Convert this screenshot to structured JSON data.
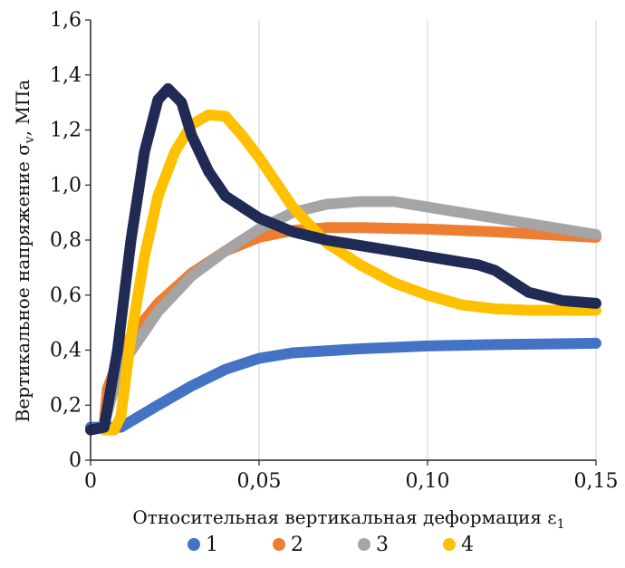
{
  "chart_data": {
    "type": "line",
    "title": "",
    "xlabel": "Относительная вертикальная деформация ε",
    "xlabel_sub": "1",
    "ylabel": "Вертикальное напряжение σ",
    "ylabel_sub": "v",
    "ylabel_suffix": ", МПа",
    "xlim": [
      0,
      0.15
    ],
    "ylim": [
      0,
      1.6
    ],
    "x_ticks": [
      0,
      0.05,
      0.1,
      0.15
    ],
    "x_tick_labels": [
      "0",
      "0,05",
      "0,10",
      "0,15"
    ],
    "y_ticks": [
      0,
      0.2,
      0.4,
      0.6,
      0.8,
      1.0,
      1.2,
      1.4,
      1.6
    ],
    "y_tick_labels": [
      "0",
      "0,2",
      "0,4",
      "0,6",
      "0,8",
      "1,0",
      "1,2",
      "1,4",
      "1,6"
    ],
    "grid": "vertical",
    "legend_position": "bottom",
    "series": [
      {
        "name": "1",
        "color": "#4472C4",
        "x": [
          0.0,
          0.009,
          0.02,
          0.03,
          0.04,
          0.05,
          0.06,
          0.08,
          0.1,
          0.12,
          0.15
        ],
        "y": [
          0.12,
          0.12,
          0.2,
          0.27,
          0.33,
          0.37,
          0.39,
          0.405,
          0.415,
          0.42,
          0.425
        ]
      },
      {
        "name": "2",
        "color": "#ED7D31",
        "x": [
          0.004,
          0.005,
          0.01,
          0.02,
          0.03,
          0.04,
          0.05,
          0.06,
          0.07,
          0.08,
          0.1,
          0.12,
          0.15
        ],
        "y": [
          0.13,
          0.26,
          0.42,
          0.57,
          0.68,
          0.76,
          0.81,
          0.835,
          0.845,
          0.845,
          0.84,
          0.83,
          0.81
        ]
      },
      {
        "name": "3",
        "color": "#A5A5A5",
        "x": [
          0.004,
          0.006,
          0.01,
          0.02,
          0.03,
          0.04,
          0.05,
          0.06,
          0.07,
          0.08,
          0.09,
          0.1,
          0.12,
          0.15
        ],
        "y": [
          0.13,
          0.22,
          0.36,
          0.54,
          0.67,
          0.76,
          0.84,
          0.9,
          0.93,
          0.94,
          0.94,
          0.92,
          0.88,
          0.82
        ]
      },
      {
        "name": "4",
        "color": "#FFC000",
        "x": [
          0.004,
          0.007,
          0.009,
          0.012,
          0.016,
          0.02,
          0.025,
          0.03,
          0.035,
          0.04,
          0.045,
          0.05,
          0.06,
          0.07,
          0.08,
          0.09,
          0.1,
          0.11,
          0.12,
          0.13,
          0.15
        ],
        "y": [
          0.11,
          0.11,
          0.16,
          0.45,
          0.74,
          0.96,
          1.12,
          1.22,
          1.255,
          1.25,
          1.18,
          1.1,
          0.92,
          0.79,
          0.71,
          0.645,
          0.6,
          0.565,
          0.55,
          0.545,
          0.545
        ]
      },
      {
        "name": "",
        "color": "#1F2A55",
        "x": [
          0.0,
          0.004,
          0.008,
          0.012,
          0.016,
          0.02,
          0.023,
          0.027,
          0.03,
          0.035,
          0.04,
          0.05,
          0.06,
          0.07,
          0.08,
          0.09,
          0.1,
          0.11,
          0.115,
          0.12,
          0.125,
          0.13,
          0.14,
          0.15
        ],
        "y": [
          0.11,
          0.12,
          0.4,
          0.8,
          1.12,
          1.31,
          1.35,
          1.3,
          1.18,
          1.05,
          0.96,
          0.88,
          0.83,
          0.8,
          0.78,
          0.76,
          0.74,
          0.72,
          0.71,
          0.69,
          0.65,
          0.61,
          0.58,
          0.57
        ]
      }
    ],
    "legend": [
      {
        "label": "1",
        "color": "#4472C4"
      },
      {
        "label": "2",
        "color": "#ED7D31"
      },
      {
        "label": "3",
        "color": "#A5A5A5"
      },
      {
        "label": "4",
        "color": "#FFC000"
      }
    ]
  }
}
